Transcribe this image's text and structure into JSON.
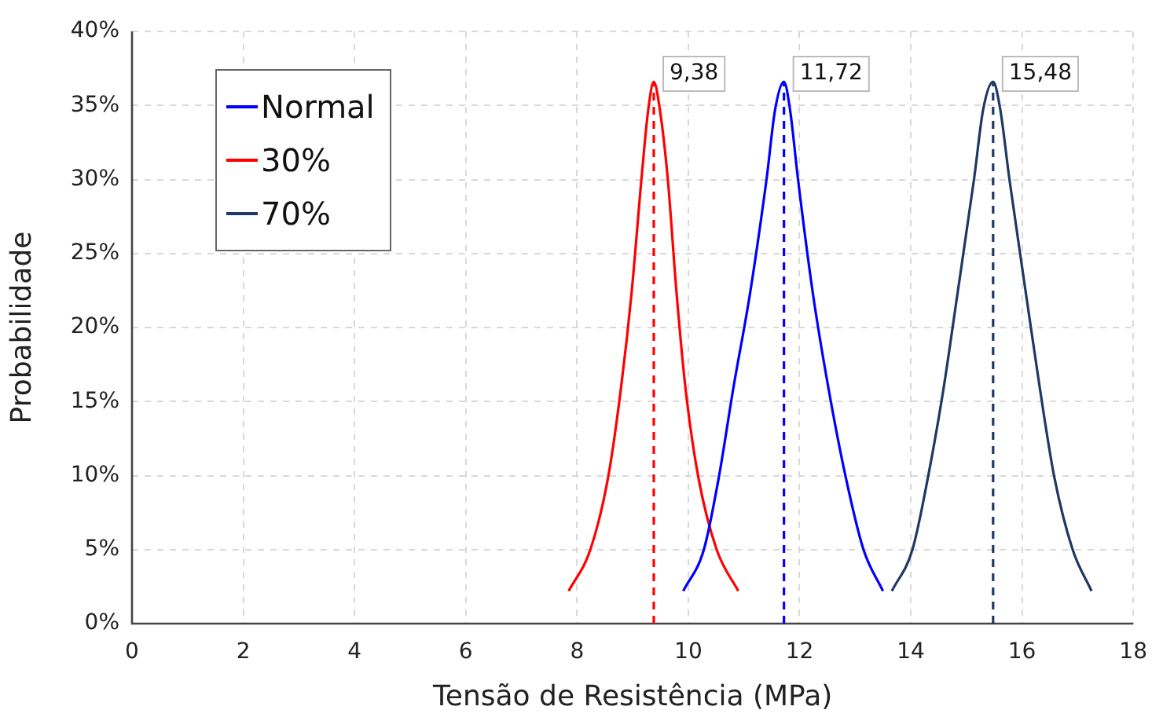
{
  "chart_data": {
    "type": "line",
    "xlabel": "Tensão de Resistência (MPa)",
    "ylabel": "Probabilidade",
    "xlim": [
      0,
      18
    ],
    "xticks": [
      0,
      2,
      4,
      6,
      8,
      10,
      12,
      14,
      16,
      18
    ],
    "ylim": [
      0,
      40
    ],
    "yticks": [
      {
        "value": 0,
        "label": "0%"
      },
      {
        "value": 5,
        "label": "5%"
      },
      {
        "value": 10,
        "label": "10%"
      },
      {
        "value": 15,
        "label": "15%"
      },
      {
        "value": 20,
        "label": "20%"
      },
      {
        "value": 25,
        "label": "25%"
      },
      {
        "value": 30,
        "label": "30%"
      },
      {
        "value": 35,
        "label": "35%"
      },
      {
        "value": 40,
        "label": "40%"
      }
    ],
    "grid": true,
    "legend": "top left",
    "marker": "none",
    "line_style": "solid",
    "series": [
      {
        "name": "Normal",
        "color": "#0000ff",
        "x": [
          9.91,
          10.28,
          10.55,
          10.81,
          11.11,
          11.41,
          11.56,
          11.72,
          11.83,
          11.97,
          12.24,
          12.52,
          12.83,
          13.15,
          13.5
        ],
        "values": [
          2.2,
          5.0,
          9.9,
          15.9,
          22.3,
          30.1,
          34.7,
          36.6,
          34.7,
          30.1,
          22.3,
          15.9,
          9.9,
          5.0,
          2.2
        ]
      },
      {
        "name": "30%",
        "color": "#ff0000",
        "x": [
          7.85,
          8.24,
          8.56,
          8.79,
          8.98,
          9.16,
          9.28,
          9.38,
          9.49,
          9.63,
          9.79,
          9.95,
          10.18,
          10.51,
          10.9
        ],
        "values": [
          2.2,
          5.0,
          9.9,
          15.9,
          22.3,
          30.1,
          34.7,
          36.6,
          34.7,
          30.1,
          22.3,
          15.9,
          9.9,
          5.0,
          2.2
        ]
      },
      {
        "name": "70%",
        "color": "#1f3864",
        "x": [
          13.66,
          14.03,
          14.31,
          14.59,
          14.84,
          15.14,
          15.3,
          15.48,
          15.61,
          15.77,
          16.07,
          16.32,
          16.58,
          16.91,
          17.25
        ],
        "values": [
          2.2,
          5.0,
          9.9,
          15.9,
          22.3,
          30.1,
          34.7,
          36.6,
          34.7,
          30.1,
          22.3,
          15.9,
          9.9,
          5.0,
          2.2
        ]
      }
    ],
    "ref_lines": [
      {
        "axis": "x",
        "value": 9.38,
        "label": "9,38",
        "color": "#ff0000",
        "line_style": "dashed"
      },
      {
        "axis": "x",
        "value": 11.72,
        "label": "11,72",
        "color": "#0000ff",
        "line_style": "dashed"
      },
      {
        "axis": "x",
        "value": 15.48,
        "label": "15,48",
        "color": "#1f3864",
        "line_style": "dashed"
      }
    ]
  }
}
